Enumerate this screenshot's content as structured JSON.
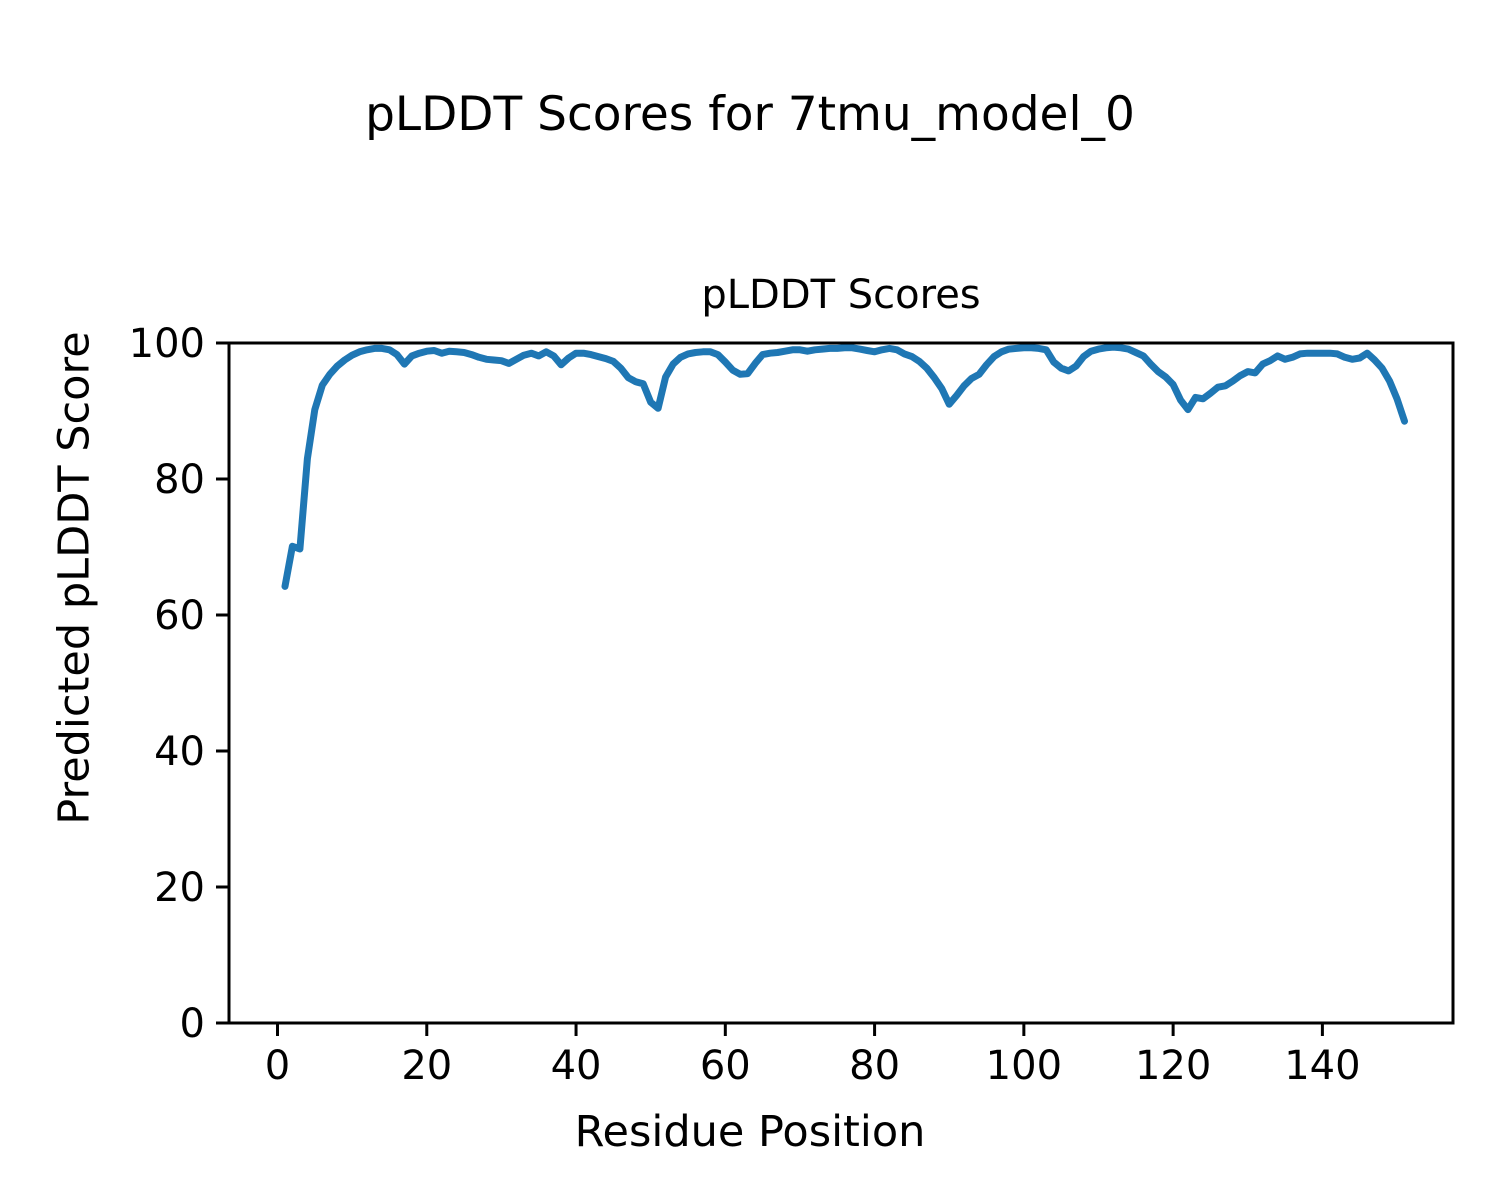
{
  "figure": {
    "suptitle": "pLDDT Scores for 7tmu_model_0",
    "background_color": "#ffffff",
    "text_color": "#000000"
  },
  "chart_data": {
    "type": "line",
    "title": "pLDDT Scores",
    "xlabel": "Residue Position",
    "ylabel": "Predicted pLDDT Score",
    "legend_position": "none",
    "grid": false,
    "line_color": "#1f77b4",
    "line_width": 7,
    "spine_color": "#000000",
    "xlim": [
      -6.5,
      157.5
    ],
    "ylim": [
      0,
      100
    ],
    "xticks": [
      0,
      20,
      40,
      60,
      80,
      100,
      120,
      140
    ],
    "yticks": [
      0,
      20,
      40,
      60,
      80,
      100
    ],
    "series": [
      {
        "name": "pLDDT",
        "x": [
          1,
          2,
          3,
          4,
          5,
          6,
          7,
          8,
          9,
          10,
          11,
          12,
          13,
          14,
          15,
          16,
          17,
          18,
          19,
          20,
          21,
          22,
          23,
          24,
          25,
          26,
          27,
          28,
          29,
          30,
          31,
          32,
          33,
          34,
          35,
          36,
          37,
          38,
          39,
          40,
          41,
          42,
          43,
          44,
          45,
          46,
          47,
          48,
          49,
          50,
          51,
          52,
          53,
          54,
          55,
          56,
          57,
          58,
          59,
          60,
          61,
          62,
          63,
          64,
          65,
          66,
          67,
          68,
          69,
          70,
          71,
          72,
          73,
          74,
          75,
          76,
          77,
          78,
          79,
          80,
          81,
          82,
          83,
          84,
          85,
          86,
          87,
          88,
          89,
          90,
          91,
          92,
          93,
          94,
          95,
          96,
          97,
          98,
          99,
          100,
          101,
          102,
          103,
          104,
          105,
          106,
          107,
          108,
          109,
          110,
          111,
          112,
          113,
          114,
          115,
          116,
          117,
          118,
          119,
          120,
          121,
          122,
          123,
          124,
          125,
          126,
          127,
          128,
          129,
          130,
          131,
          132,
          133,
          134,
          135,
          136,
          137,
          138,
          139,
          140,
          141,
          142,
          143,
          144,
          145,
          146,
          147,
          148,
          149,
          150,
          151
        ],
        "y": [
          64.2,
          70.1,
          69.7,
          83.0,
          90.2,
          93.8,
          95.4,
          96.6,
          97.5,
          98.2,
          98.7,
          99.0,
          99.2,
          99.2,
          99.0,
          98.3,
          96.9,
          98.1,
          98.5,
          98.8,
          98.9,
          98.5,
          98.8,
          98.7,
          98.6,
          98.3,
          97.9,
          97.6,
          97.5,
          97.4,
          97.0,
          97.6,
          98.2,
          98.5,
          98.1,
          98.7,
          98.1,
          96.8,
          97.8,
          98.5,
          98.5,
          98.3,
          98.0,
          97.7,
          97.3,
          96.3,
          94.9,
          94.3,
          94.0,
          91.3,
          90.4,
          95.0,
          96.9,
          97.9,
          98.4,
          98.6,
          98.7,
          98.7,
          98.3,
          97.2,
          96.0,
          95.4,
          95.5,
          97.0,
          98.3,
          98.5,
          98.6,
          98.8,
          99.0,
          99.0,
          98.8,
          99.0,
          99.1,
          99.2,
          99.2,
          99.3,
          99.3,
          99.1,
          98.9,
          98.7,
          99.0,
          99.2,
          99.0,
          98.4,
          98.0,
          97.3,
          96.3,
          94.9,
          93.3,
          91.0,
          92.3,
          93.7,
          94.8,
          95.4,
          96.8,
          98.0,
          98.7,
          99.1,
          99.2,
          99.3,
          99.3,
          99.2,
          99.0,
          97.2,
          96.3,
          95.9,
          96.6,
          98.0,
          98.8,
          99.1,
          99.3,
          99.4,
          99.3,
          99.1,
          98.6,
          98.1,
          96.9,
          95.8,
          95.0,
          93.9,
          91.6,
          90.2,
          92.0,
          91.8,
          92.6,
          93.5,
          93.7,
          94.4,
          95.2,
          95.8,
          95.6,
          96.9,
          97.4,
          98.1,
          97.6,
          97.9,
          98.4,
          98.5,
          98.5,
          98.5,
          98.5,
          98.4,
          97.9,
          97.6,
          97.8,
          98.5,
          97.5,
          96.3,
          94.4,
          91.8,
          88.5
        ]
      }
    ]
  }
}
